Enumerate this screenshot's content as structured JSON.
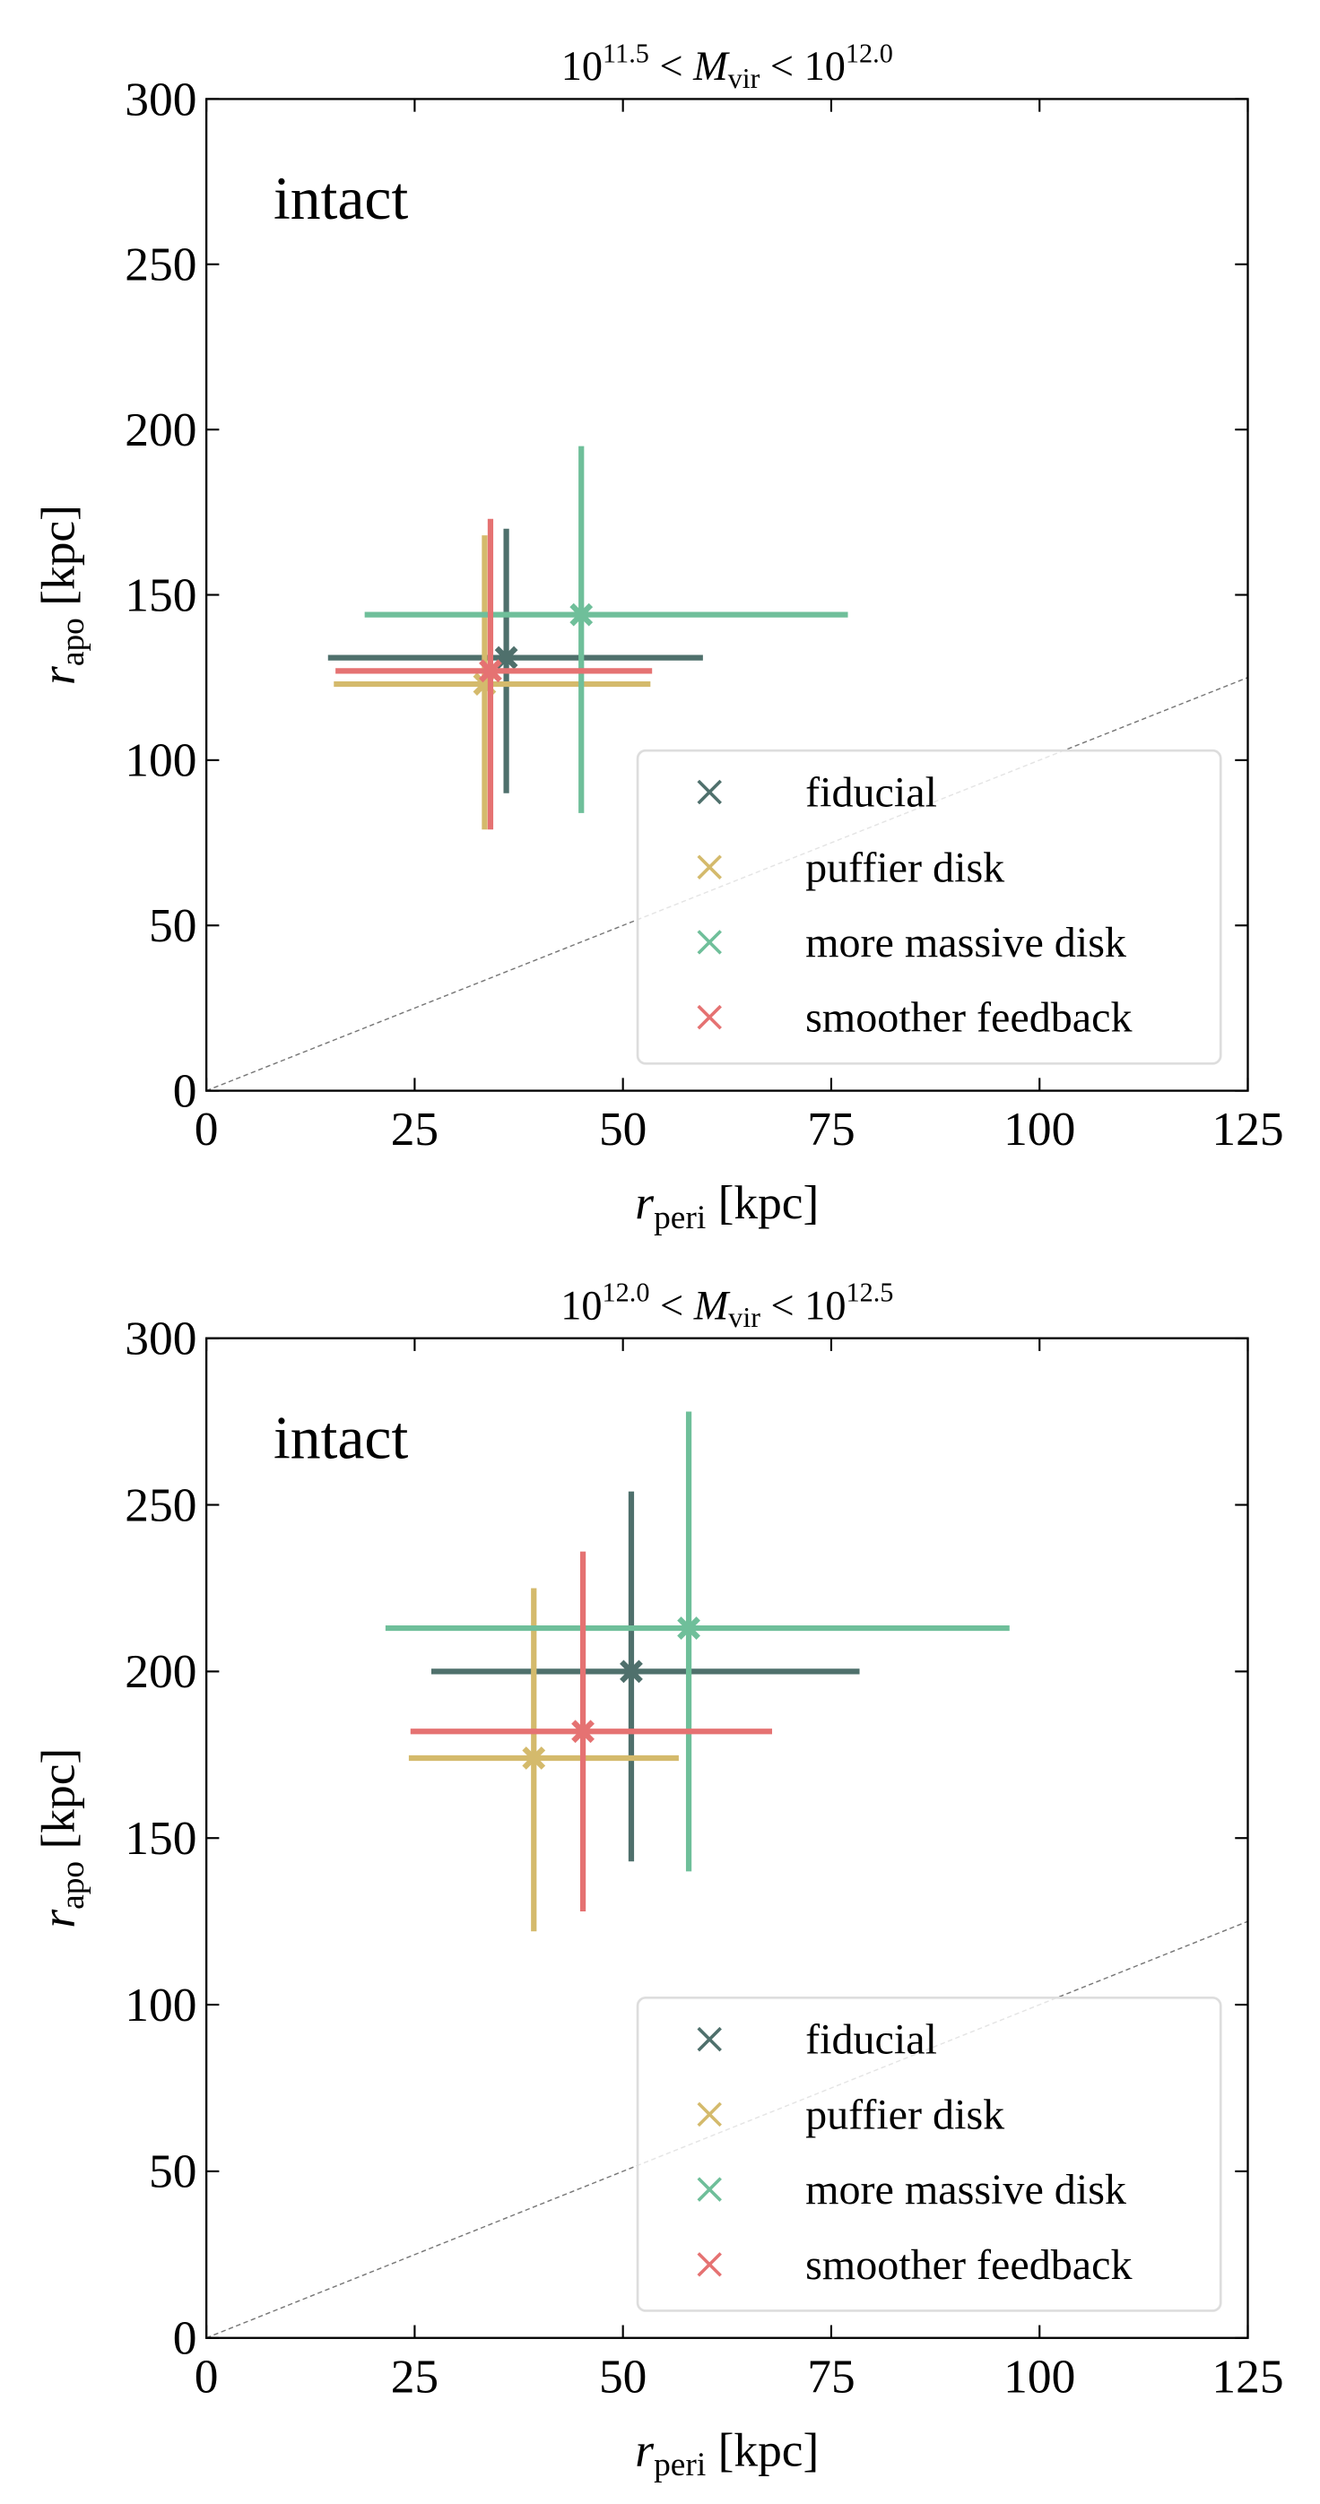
{
  "colors": {
    "fiducial": "#4f706c",
    "puffier disk": "#d4ba6c",
    "more massive disk": "#6fbf9a",
    "smoother feedback": "#e57272"
  },
  "chart_data": [
    {
      "type": "scatter",
      "title": {
        "base1": "10",
        "exp1": "11.5",
        "mid": " < ",
        "var": "M",
        "sub": "vir",
        "mid2": " < ",
        "base2": "10",
        "exp2": "12.0"
      },
      "annotation": "intact",
      "xlabel": {
        "var": "r",
        "sub": "peri",
        "unit": " [kpc]"
      },
      "ylabel": {
        "var": "r",
        "sub": "apo",
        "unit": " [kpc]"
      },
      "xlim": [
        0,
        125
      ],
      "ylim": [
        0,
        300
      ],
      "xticks": [
        "0",
        "25",
        "50",
        "75",
        "100",
        "125"
      ],
      "yticks": [
        "0",
        "50",
        "100",
        "150",
        "200",
        "250",
        "300"
      ],
      "grid": false,
      "legend_position": "bottom-right",
      "reference_line": "y = x (dashed)",
      "series": [
        {
          "name": "fiducial",
          "x": 36,
          "y": 131,
          "xerr": [
            14.6,
            59.6
          ],
          "yerr": [
            90,
            170
          ]
        },
        {
          "name": "puffier disk",
          "x": 33.4,
          "y": 123,
          "xerr": [
            15.3,
            53.3
          ],
          "yerr": [
            79,
            168
          ]
        },
        {
          "name": "more massive disk",
          "x": 45,
          "y": 144,
          "xerr": [
            19,
            77
          ],
          "yerr": [
            84,
            195
          ]
        },
        {
          "name": "smoother feedback",
          "x": 34.1,
          "y": 127,
          "xerr": [
            15.5,
            53.5
          ],
          "yerr": [
            79,
            173
          ]
        }
      ]
    },
    {
      "type": "scatter",
      "title": {
        "base1": "10",
        "exp1": "12.0",
        "mid": " < ",
        "var": "M",
        "sub": "vir",
        "mid2": " < ",
        "base2": "10",
        "exp2": "12.5"
      },
      "annotation": "intact",
      "xlabel": {
        "var": "r",
        "sub": "peri",
        "unit": " [kpc]"
      },
      "ylabel": {
        "var": "r",
        "sub": "apo",
        "unit": " [kpc]"
      },
      "xlim": [
        0,
        125
      ],
      "ylim": [
        0,
        300
      ],
      "xticks": [
        "0",
        "25",
        "50",
        "75",
        "100",
        "125"
      ],
      "yticks": [
        "0",
        "50",
        "100",
        "150",
        "200",
        "250",
        "300"
      ],
      "grid": false,
      "legend_position": "bottom-right",
      "reference_line": "y = x (dashed)",
      "series": [
        {
          "name": "fiducial",
          "x": 51,
          "y": 200,
          "xerr": [
            27,
            78.4
          ],
          "yerr": [
            143,
            254
          ]
        },
        {
          "name": "puffier disk",
          "x": 39.3,
          "y": 174,
          "xerr": [
            24.3,
            56.7
          ],
          "yerr": [
            122,
            225
          ]
        },
        {
          "name": "more massive disk",
          "x": 57.9,
          "y": 213,
          "xerr": [
            21.5,
            96.4
          ],
          "yerr": [
            140,
            278
          ]
        },
        {
          "name": "smoother feedback",
          "x": 45.2,
          "y": 182,
          "xerr": [
            24.5,
            67.9
          ],
          "yerr": [
            128,
            236
          ]
        }
      ]
    }
  ]
}
